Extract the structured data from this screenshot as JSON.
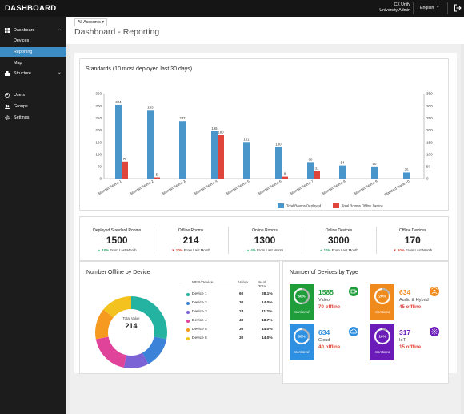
{
  "header": {
    "brand": "DASHBOARD",
    "user_org": "CX Unify",
    "user_role": "University Admin",
    "language": "English"
  },
  "sidebar": {
    "items": [
      {
        "label": "Dashboard",
        "icon": "dashboard-icon"
      },
      {
        "label": "Devices"
      },
      {
        "label": "Reporting"
      },
      {
        "label": "Map"
      },
      {
        "label": "Structure",
        "icon": "structure-icon"
      },
      {
        "label": "Users",
        "icon": "user-icon"
      },
      {
        "label": "Groups",
        "icon": "groups-icon"
      },
      {
        "label": "Settings",
        "icon": "gear-icon"
      }
    ]
  },
  "toolbar": {
    "account_select": "All Accounts",
    "page_title": "Dashboard - Reporting"
  },
  "chart_data": {
    "type": "bar",
    "title": "Standards (10 most deployed last 30 days)",
    "categories": [
      "Standard Name 1",
      "Standard Name 2",
      "Standard Name 3",
      "Standard Name 4",
      "Standard Name 5",
      "Standard Name 6",
      "Standard Name 7",
      "Standard Name 8",
      "Standard Name 9",
      "Standard Name 10"
    ],
    "series": [
      {
        "name": "Total Rooms Deployed",
        "color": "#4a95c9",
        "values": [
          304,
          283,
          237,
          195,
          151,
          130,
          68,
          54,
          50,
          25
        ]
      },
      {
        "name": "Total Rooms Offline Device",
        "color": "#e0453b",
        "values": [
          70,
          5,
          null,
          180,
          null,
          8,
          31,
          null,
          null,
          null
        ]
      }
    ],
    "ylim": [
      0,
      350
    ],
    "yticks": [
      0,
      50,
      100,
      150,
      200,
      250,
      300,
      350
    ],
    "grid": false,
    "legend": "bottom"
  },
  "stats": [
    {
      "label": "Deployed Standard Rooms",
      "value": "1500",
      "change": "10%",
      "direction": "up",
      "suffix": "From Last Month",
      "color": "#2ea36b"
    },
    {
      "label": "Offline Rooms",
      "value": "214",
      "change": "10%",
      "direction": "down",
      "suffix": "From Last Month",
      "color": "#e0453b"
    },
    {
      "label": "Online Rooms",
      "value": "1300",
      "change": "4%",
      "direction": "up",
      "suffix": "From Last Month",
      "color": "#2ea36b"
    },
    {
      "label": "Online Devices",
      "value": "3000",
      "change": "10%",
      "direction": "up",
      "suffix": "From Last Month",
      "color": "#2ea36b"
    },
    {
      "label": "Offline Devices",
      "value": "170",
      "change": "10%",
      "direction": "down",
      "suffix": "From Last Month",
      "color": "#e0453b"
    }
  ],
  "offline_by_device": {
    "title": "Number Offline by Device",
    "total_label": "Total Value",
    "total_value": "214",
    "headers": {
      "name": "MFR/Device",
      "value": "Value",
      "pct": "% of Total"
    },
    "rows": [
      {
        "name": "Device 1",
        "value": "60",
        "pct": "28.1%",
        "color": "#25b3a1"
      },
      {
        "name": "Device 2",
        "value": "30",
        "pct": "14.0%",
        "color": "#3b82d8"
      },
      {
        "name": "Device 3",
        "value": "24",
        "pct": "11.2%",
        "color": "#7b63d6"
      },
      {
        "name": "Device 4",
        "value": "40",
        "pct": "18.7%",
        "color": "#e0449a"
      },
      {
        "name": "Device 5",
        "value": "30",
        "pct": "14.0%",
        "color": "#f59a1e"
      },
      {
        "name": "Device 6",
        "value": "30",
        "pct": "14.0%",
        "color": "#f4c21f"
      }
    ]
  },
  "devices_by_type": {
    "title": "Number of Devices by Type",
    "tiles": [
      {
        "pct": "50%",
        "fraction": 0.5,
        "monitored": "monitored",
        "count": "1585",
        "name": "Video",
        "offline": "70 offline",
        "color": "#1f9d3b",
        "icon": "video-icon"
      },
      {
        "pct": "20%",
        "fraction": 0.2,
        "monitored": "monitored",
        "count": "634",
        "name": "Audio & Hybrid",
        "offline": "45 offline",
        "color": "#f08a1c",
        "icon": "audio-icon"
      },
      {
        "pct": "30%",
        "fraction": 0.3,
        "monitored": "monitored",
        "count": "634",
        "name": "Cloud",
        "offline": "40 offline",
        "color": "#2f8fe0",
        "icon": "cloud-icon"
      },
      {
        "pct": "10%",
        "fraction": 0.1,
        "monitored": "monitored",
        "count": "317",
        "name": "IoT",
        "offline": "15 offline",
        "color": "#6a1bb8",
        "icon": "iot-icon"
      }
    ]
  }
}
